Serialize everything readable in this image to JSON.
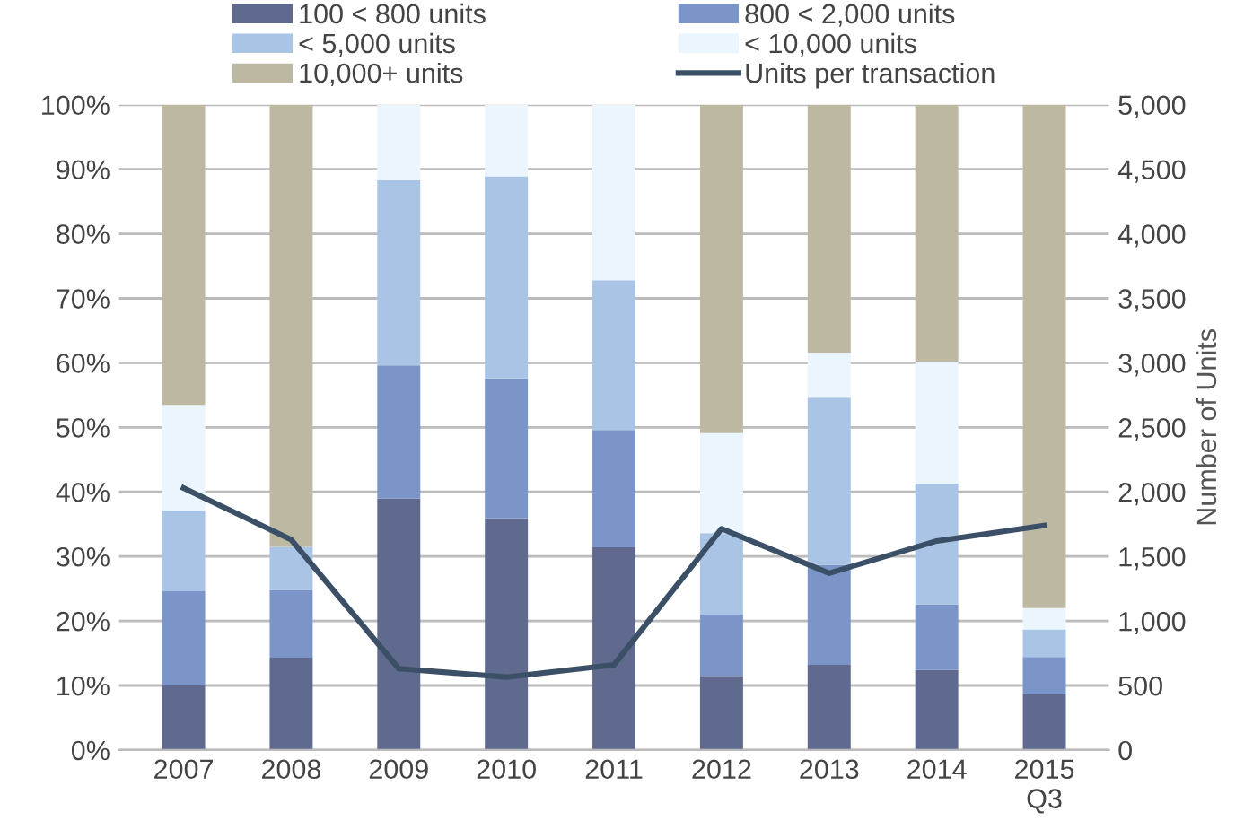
{
  "chart_data": {
    "type": "bar",
    "stacked": true,
    "categories": [
      "2007",
      "2008",
      "2009",
      "2010",
      "2011",
      "2012",
      "2013",
      "2014",
      "2015\nQ3"
    ],
    "series": [
      {
        "name": "100 < 800 units",
        "color": "#5f6a8e",
        "values": [
          10,
          14.3,
          39,
          35.9,
          31.4,
          11.5,
          13.2,
          12.4,
          8.6
        ]
      },
      {
        "name": "800 < 2,000 units",
        "color": "#7b95c8",
        "values": [
          14.6,
          10.5,
          20.6,
          21.7,
          18.2,
          9.5,
          15.5,
          10.2,
          5.8
        ]
      },
      {
        "name": "< 5,000 units",
        "color": "#a9c4e4",
        "values": [
          12.5,
          6.7,
          28.7,
          31.3,
          23.2,
          12.6,
          25.9,
          18.7,
          4.3
        ]
      },
      {
        "name": "< 10,000 units",
        "color": "#eaf5fd",
        "values": [
          16.4,
          0,
          11.7,
          11.1,
          27.2,
          15.5,
          7,
          18.9,
          3.3
        ]
      },
      {
        "name": "10,000+ units",
        "color": "#bdb8a2",
        "values": [
          46.5,
          68.5,
          0,
          0,
          0,
          50.9,
          38.4,
          39.8,
          78
        ]
      },
      {
        "name": "Units per transaction",
        "type": "line",
        "axis": "y2",
        "color": "#3b5066",
        "values": [
          2030,
          1630,
          630,
          565,
          660,
          1715,
          1370,
          1620,
          1740
        ]
      }
    ],
    "ylim": [
      0,
      100
    ],
    "yticks": [
      {
        "value": 0,
        "label": "0%"
      },
      {
        "value": 10,
        "label": "10%"
      },
      {
        "value": 20,
        "label": "20%"
      },
      {
        "value": 30,
        "label": "30%"
      },
      {
        "value": 40,
        "label": "40%"
      },
      {
        "value": 50,
        "label": "50%"
      },
      {
        "value": 60,
        "label": "60%"
      },
      {
        "value": 70,
        "label": "70%"
      },
      {
        "value": 80,
        "label": "80%"
      },
      {
        "value": 90,
        "label": "90%"
      },
      {
        "value": 100,
        "label": "100%"
      }
    ],
    "y2lim": [
      0,
      5000
    ],
    "y2ticks": [
      {
        "value": 0,
        "label": "0"
      },
      {
        "value": 500,
        "label": "500"
      },
      {
        "value": 1000,
        "label": "1,000"
      },
      {
        "value": 1500,
        "label": "1,500"
      },
      {
        "value": 2000,
        "label": "2,000"
      },
      {
        "value": 2500,
        "label": "2,500"
      },
      {
        "value": 3000,
        "label": "3,000"
      },
      {
        "value": 3500,
        "label": "3,500"
      },
      {
        "value": 4000,
        "label": "4,000"
      },
      {
        "value": 4500,
        "label": "4,500"
      },
      {
        "value": 5000,
        "label": "5,000"
      }
    ],
    "y2label": "Number of Units",
    "grid": "y",
    "legend": "top",
    "line_style": "solid",
    "marker": "none"
  }
}
